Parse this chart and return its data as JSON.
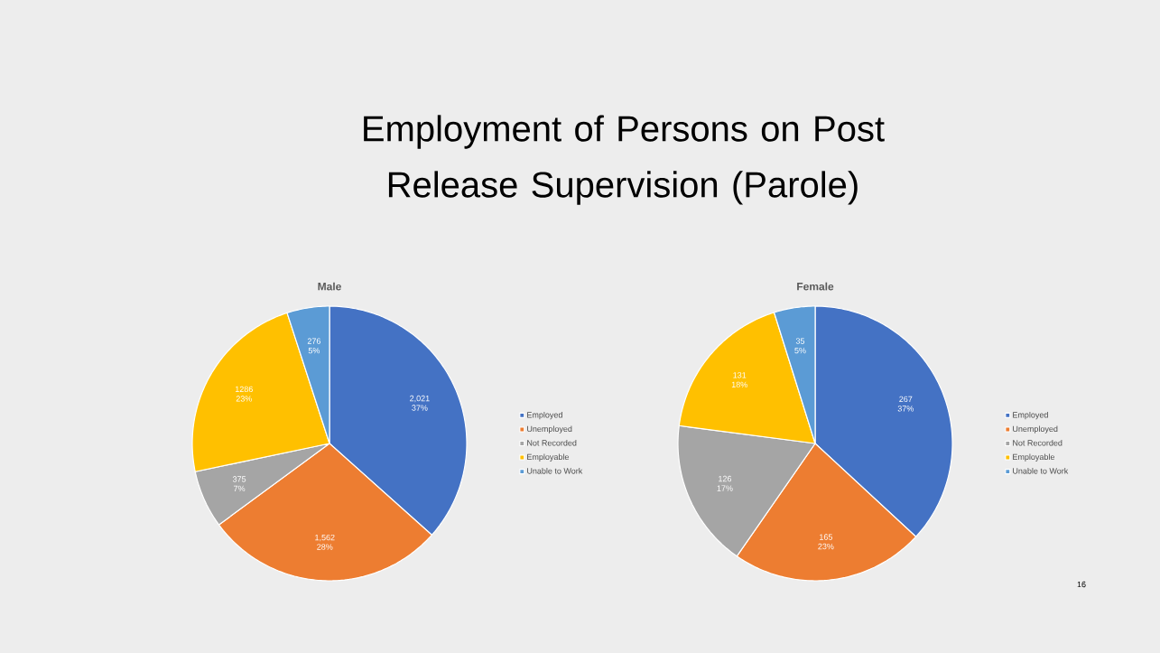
{
  "chart_data": [
    {
      "type": "pie",
      "title": "Employment of Persons on Post Release Supervision (Parole)",
      "subtitle": "Male",
      "categories": [
        "Employed",
        "Unemployed",
        "Not Recorded",
        "Employable",
        "Unable to Work"
      ],
      "values": [
        2021,
        1562,
        375,
        1286,
        276
      ],
      "value_labels": [
        "2,021 37%",
        "1,562 28%",
        "375 7%",
        "1286 23%",
        "276 5%"
      ],
      "colors": [
        "#4472c4",
        "#ed7d31",
        "#a5a5a5",
        "#ffc000",
        "#5b9bd5"
      ],
      "legend": "right"
    },
    {
      "type": "pie",
      "title": "Female",
      "categories": [
        "Employed",
        "Unemployed",
        "Not Recorded",
        "Employable",
        "Unable to Work"
      ],
      "values": [
        267,
        165,
        126,
        131,
        35
      ],
      "value_labels": [
        "267 37%",
        "165 23%",
        "126 17%",
        "131 18%",
        "35 5%"
      ],
      "colors": [
        "#4472c4",
        "#ed7d31",
        "#a5a5a5",
        "#ffc000",
        "#5b9bd5"
      ],
      "legend": "right",
      "annotations": [
        "16"
      ]
    }
  ]
}
